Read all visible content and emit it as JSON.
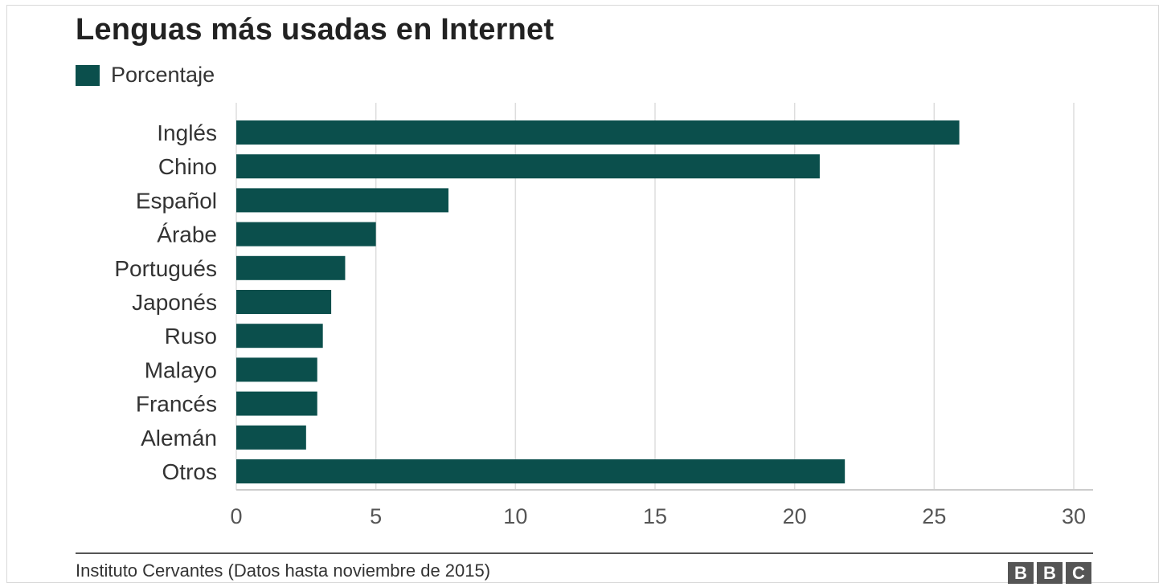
{
  "chart_data": {
    "type": "bar",
    "orientation": "horizontal",
    "title": "Lenguas más usadas en Internet",
    "categories": [
      "Inglés",
      "Chino",
      "Español",
      "Árabe",
      "Portugués",
      "Japonés",
      "Ruso",
      "Malayo",
      "Francés",
      "Alemán",
      "Otros"
    ],
    "series": [
      {
        "name": "Porcentaje",
        "values": [
          25.9,
          20.9,
          7.6,
          5.0,
          3.9,
          3.4,
          3.1,
          2.9,
          2.9,
          2.5,
          21.8
        ]
      }
    ],
    "xlim": [
      0,
      30
    ],
    "xticks": [
      "0",
      "5",
      "10",
      "15",
      "20",
      "25",
      "30"
    ],
    "grid": "vertical",
    "legend_position": "top-left",
    "bar_color": "#0b4f4c"
  },
  "footer": {
    "source": "Instituto Cervantes (Datos hasta noviembre de 2015)",
    "logo_letters": [
      "B",
      "B",
      "C"
    ]
  }
}
